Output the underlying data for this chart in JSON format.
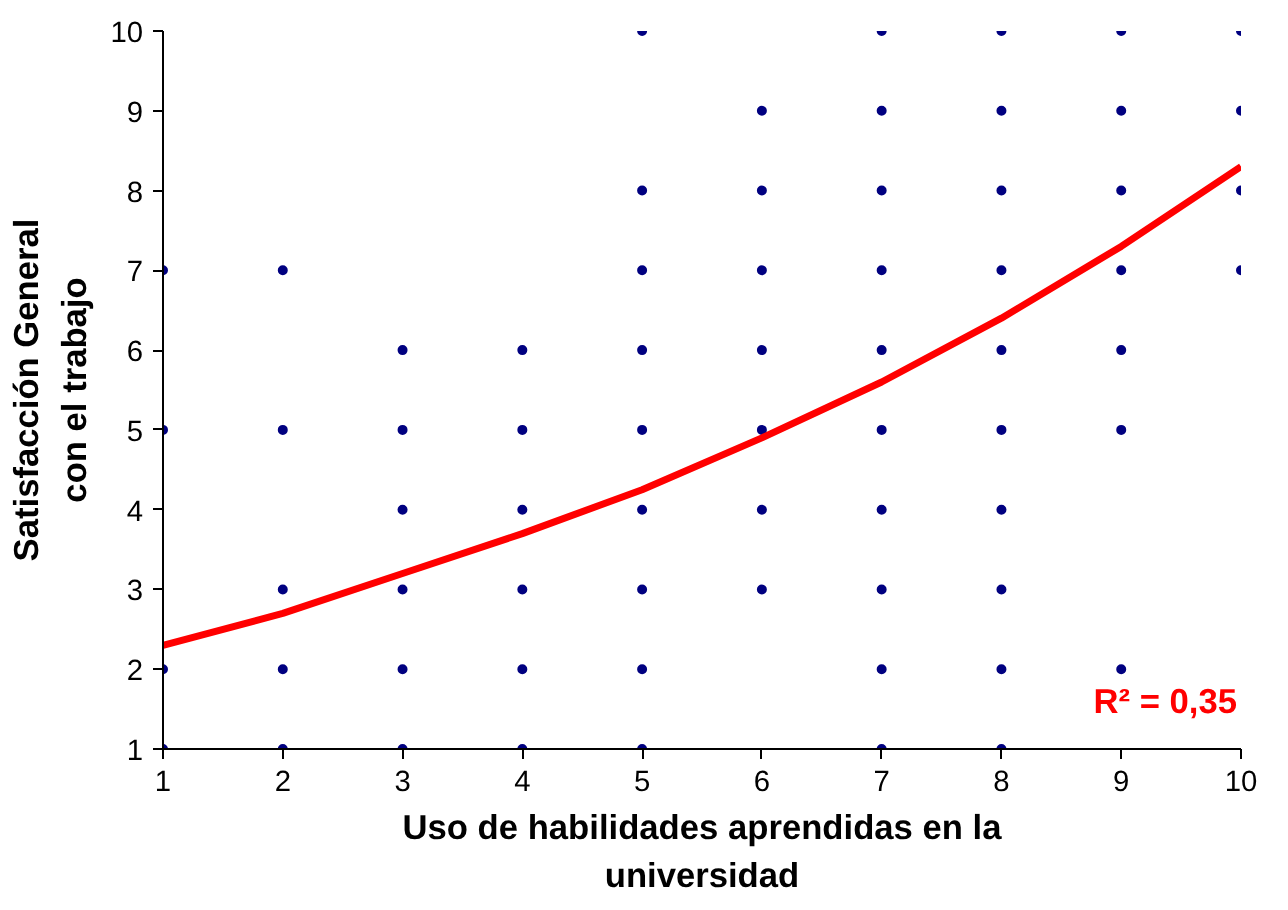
{
  "chart_data": {
    "type": "scatter",
    "xlabel": "Uso de habilidades aprendidas en la\nuniversidad",
    "ylabel": "Satisfacción General\ncon el trabajo",
    "xlim": [
      1,
      10
    ],
    "ylim": [
      1,
      10
    ],
    "xticks": [
      1,
      2,
      3,
      4,
      5,
      6,
      7,
      8,
      9,
      10
    ],
    "yticks": [
      1,
      2,
      3,
      4,
      5,
      6,
      7,
      8,
      9,
      10
    ],
    "grid": false,
    "series": [
      {
        "color": "#000080",
        "marker": "circle",
        "x": [
          1,
          1,
          1,
          1,
          2,
          2,
          2,
          2,
          2,
          3,
          3,
          3,
          3,
          3,
          3,
          4,
          4,
          4,
          4,
          4,
          4,
          5,
          5,
          5,
          5,
          5,
          5,
          5,
          5,
          5,
          6,
          6,
          6,
          6,
          6,
          6,
          6,
          7,
          7,
          7,
          7,
          7,
          7,
          7,
          7,
          7,
          7,
          8,
          8,
          8,
          8,
          8,
          8,
          8,
          8,
          8,
          8,
          9,
          9,
          9,
          9,
          9,
          9,
          9,
          10,
          10,
          10,
          10
        ],
        "values": [
          1,
          2,
          5,
          7,
          1,
          2,
          3,
          5,
          7,
          1,
          2,
          3,
          4,
          5,
          6,
          1,
          2,
          3,
          4,
          5,
          6,
          1,
          2,
          3,
          4,
          5,
          6,
          7,
          8,
          10,
          3,
          4,
          5,
          6,
          7,
          8,
          9,
          1,
          2,
          3,
          4,
          5,
          6,
          7,
          8,
          9,
          10,
          1,
          2,
          3,
          4,
          5,
          6,
          7,
          8,
          9,
          10,
          2,
          5,
          6,
          7,
          8,
          9,
          10,
          7,
          8,
          9,
          10
        ]
      },
      {
        "type": "line",
        "color": "#ff0000",
        "x": [
          1,
          2,
          3,
          4,
          5,
          6,
          7,
          8,
          9,
          10
        ],
        "values": [
          2.3,
          2.7,
          3.2,
          3.7,
          4.25,
          4.9,
          5.6,
          6.4,
          7.3,
          8.3
        ]
      }
    ],
    "annotations": [
      "R² = 0,35"
    ]
  }
}
